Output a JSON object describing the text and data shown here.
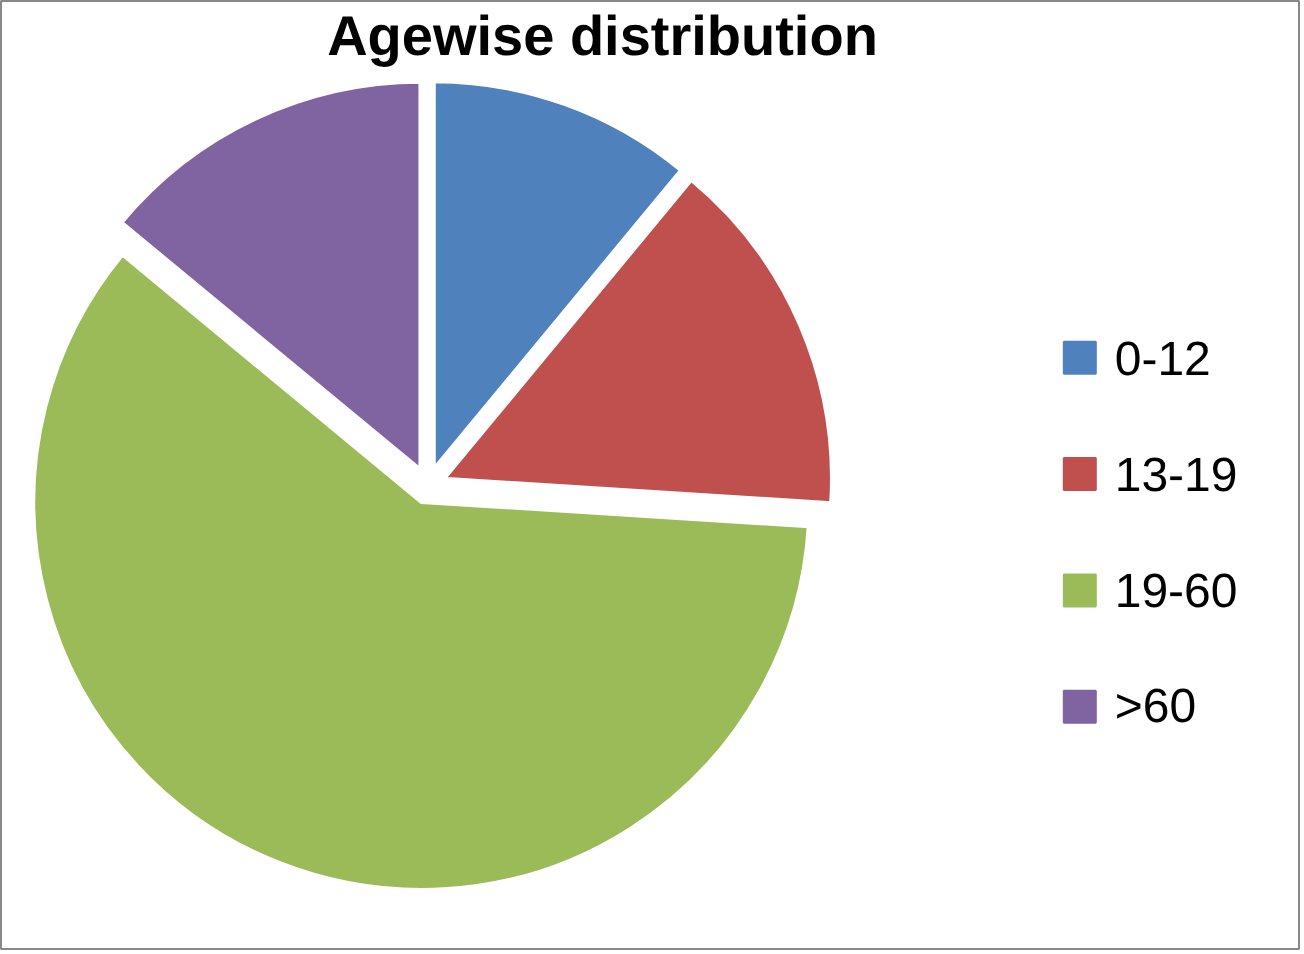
{
  "chart_data": {
    "type": "pie",
    "title": "Agewise distribution",
    "categories": [
      "0-12",
      "13-19",
      "19-60",
      ">60"
    ],
    "values": [
      11,
      15,
      60,
      14
    ],
    "colors": [
      "#4f81bd",
      "#c0504d",
      "#9bbb59",
      "#8064a2"
    ],
    "legend": "right"
  }
}
